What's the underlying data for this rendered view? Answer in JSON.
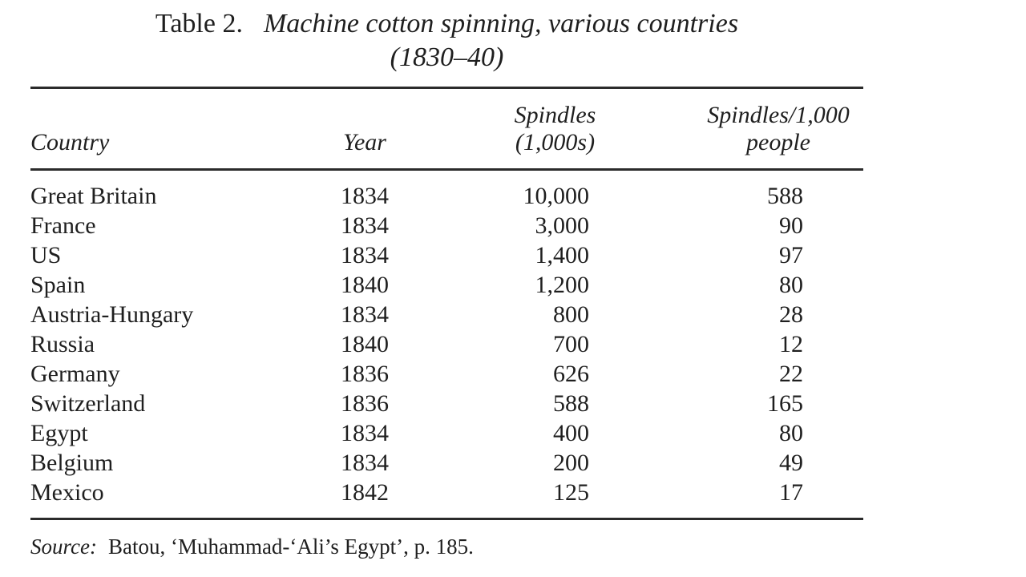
{
  "page": {
    "background": "#ffffff",
    "ink_color": "#1f1f1f",
    "rule_color": "#2b2b2b"
  },
  "caption": {
    "table_label": "Table 2.",
    "title": "Machine cotton spinning, various countries",
    "title_line2": "(1830–40)"
  },
  "table": {
    "headers": {
      "country": "Country",
      "year": "Year",
      "spindles_line1": "Spindles",
      "spindles_line2": "(1,000s)",
      "per_capita_line1": "Spindles/1,000",
      "per_capita_line2": "people"
    },
    "rows": [
      {
        "country": "Great Britain",
        "year": "1834",
        "spindles": "10,000",
        "per_capita": "588"
      },
      {
        "country": "France",
        "year": "1834",
        "spindles": "3,000",
        "per_capita": "90"
      },
      {
        "country": "US",
        "year": "1834",
        "spindles": "1,400",
        "per_capita": "97"
      },
      {
        "country": "Spain",
        "year": "1840",
        "spindles": "1,200",
        "per_capita": "80"
      },
      {
        "country": "Austria-Hungary",
        "year": "1834",
        "spindles": "800",
        "per_capita": "28"
      },
      {
        "country": "Russia",
        "year": "1840",
        "spindles": "700",
        "per_capita": "12"
      },
      {
        "country": "Germany",
        "year": "1836",
        "spindles": "626",
        "per_capita": "22"
      },
      {
        "country": "Switzerland",
        "year": "1836",
        "spindles": "588",
        "per_capita": "165"
      },
      {
        "country": "Egypt",
        "year": "1834",
        "spindles": "400",
        "per_capita": "80"
      },
      {
        "country": "Belgium",
        "year": "1834",
        "spindles": "200",
        "per_capita": "49"
      },
      {
        "country": "Mexico",
        "year": "1842",
        "spindles": "125",
        "per_capita": "17"
      }
    ]
  },
  "source": {
    "label": "Source:",
    "text": "Batou, ‘Muhammad-‘Ali’s Egypt’, p. 185."
  }
}
